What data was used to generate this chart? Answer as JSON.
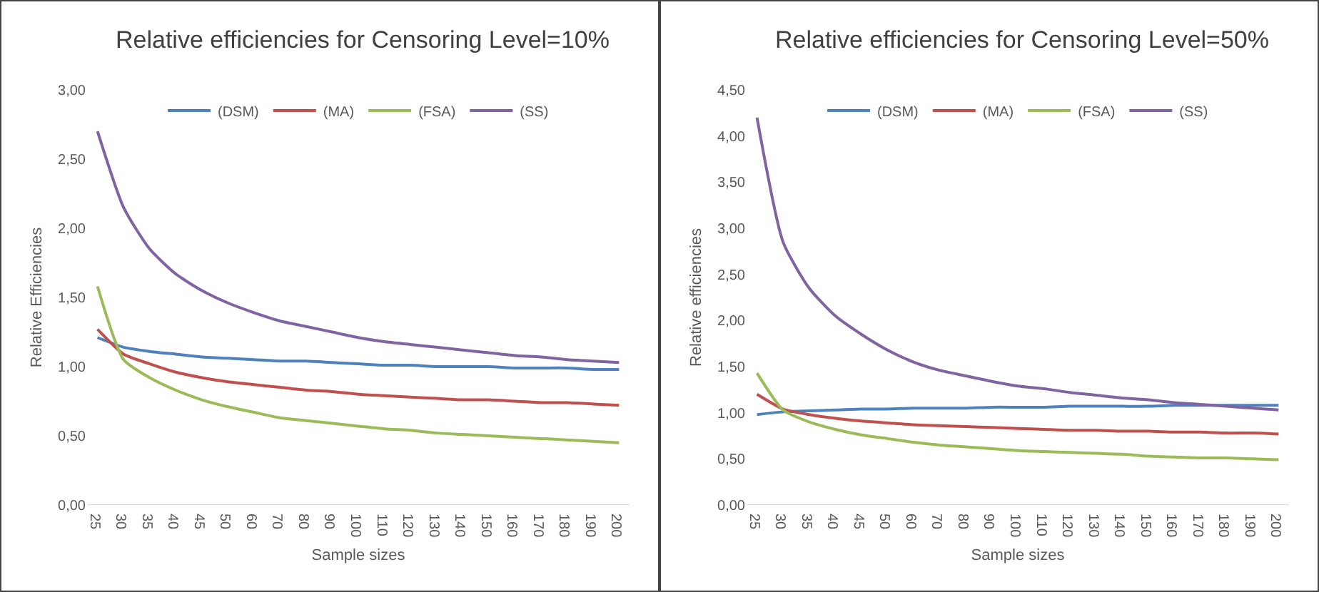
{
  "chart_data": [
    {
      "type": "line",
      "title": "Relative efficiencies for Censoring Level=10%",
      "xlabel": "Sample sizes",
      "ylabel": "Relative Efficiencies",
      "categories": [
        "25",
        "30",
        "35",
        "40",
        "45",
        "50",
        "60",
        "70",
        "80",
        "90",
        "100",
        "110",
        "120",
        "130",
        "140",
        "150",
        "160",
        "170",
        "180",
        "190",
        "200"
      ],
      "series": [
        {
          "name": "(DSM)",
          "color": "#4f81bd",
          "values": [
            1.21,
            1.14,
            1.11,
            1.09,
            1.07,
            1.06,
            1.05,
            1.04,
            1.04,
            1.03,
            1.02,
            1.01,
            1.01,
            1.0,
            1.0,
            1.0,
            0.99,
            0.99,
            0.99,
            0.98,
            0.98
          ]
        },
        {
          "name": "(MA)",
          "color": "#c0504d",
          "values": [
            1.27,
            1.09,
            1.02,
            0.96,
            0.92,
            0.89,
            0.87,
            0.85,
            0.83,
            0.82,
            0.8,
            0.79,
            0.78,
            0.77,
            0.76,
            0.76,
            0.75,
            0.74,
            0.74,
            0.73,
            0.72
          ]
        },
        {
          "name": "(FSA)",
          "color": "#9bbb59",
          "values": [
            1.58,
            1.05,
            0.92,
            0.83,
            0.76,
            0.71,
            0.67,
            0.63,
            0.61,
            0.59,
            0.57,
            0.55,
            0.54,
            0.52,
            0.51,
            0.5,
            0.49,
            0.48,
            0.47,
            0.46,
            0.45
          ]
        },
        {
          "name": "(SS)",
          "color": "#8064a2",
          "values": [
            2.7,
            2.15,
            1.85,
            1.67,
            1.55,
            1.46,
            1.39,
            1.33,
            1.29,
            1.25,
            1.21,
            1.18,
            1.16,
            1.14,
            1.12,
            1.1,
            1.08,
            1.07,
            1.05,
            1.04,
            1.03
          ]
        }
      ],
      "ylim": [
        0,
        3
      ],
      "yticks": [
        {
          "value": 0,
          "label": "0,00"
        },
        {
          "value": 0.5,
          "label": "0,50"
        },
        {
          "value": 1,
          "label": "1,00"
        },
        {
          "value": 1.5,
          "label": "1,50"
        },
        {
          "value": 2,
          "label": "2,00"
        },
        {
          "value": 2.5,
          "label": "2,50"
        },
        {
          "value": 3,
          "label": "3,00"
        }
      ],
      "grid": false,
      "legend": "top",
      "marker": "none",
      "line_style": "solid"
    },
    {
      "type": "line",
      "title": "Relative efficiencies for Censoring Level=50%",
      "xlabel": "Sample sizes",
      "ylabel": "Relative efficiencies",
      "categories": [
        "25",
        "30",
        "35",
        "40",
        "45",
        "50",
        "60",
        "70",
        "80",
        "90",
        "100",
        "110",
        "120",
        "130",
        "140",
        "150",
        "160",
        "170",
        "180",
        "190",
        "200"
      ],
      "series": [
        {
          "name": "(DSM)",
          "color": "#4f81bd",
          "values": [
            0.98,
            1.01,
            1.02,
            1.03,
            1.04,
            1.04,
            1.05,
            1.05,
            1.05,
            1.06,
            1.06,
            1.06,
            1.07,
            1.07,
            1.07,
            1.07,
            1.08,
            1.08,
            1.08,
            1.08,
            1.08
          ]
        },
        {
          "name": "(MA)",
          "color": "#c0504d",
          "values": [
            1.2,
            1.04,
            0.98,
            0.94,
            0.91,
            0.89,
            0.87,
            0.86,
            0.85,
            0.84,
            0.83,
            0.82,
            0.81,
            0.81,
            0.8,
            0.8,
            0.79,
            0.79,
            0.78,
            0.78,
            0.77
          ]
        },
        {
          "name": "(FSA)",
          "color": "#9bbb59",
          "values": [
            1.43,
            1.03,
            0.9,
            0.82,
            0.76,
            0.72,
            0.68,
            0.65,
            0.63,
            0.61,
            0.59,
            0.58,
            0.57,
            0.56,
            0.55,
            0.53,
            0.52,
            0.51,
            0.51,
            0.5,
            0.49
          ]
        },
        {
          "name": "(SS)",
          "color": "#8064a2",
          "values": [
            4.2,
            2.85,
            2.35,
            2.05,
            1.85,
            1.68,
            1.55,
            1.46,
            1.4,
            1.34,
            1.29,
            1.26,
            1.22,
            1.19,
            1.16,
            1.14,
            1.11,
            1.09,
            1.07,
            1.05,
            1.03
          ]
        }
      ],
      "ylim": [
        0,
        4.5
      ],
      "yticks": [
        {
          "value": 0,
          "label": "0,00"
        },
        {
          "value": 0.5,
          "label": "0,50"
        },
        {
          "value": 1,
          "label": "1,00"
        },
        {
          "value": 1.5,
          "label": "1,50"
        },
        {
          "value": 2,
          "label": "2,00"
        },
        {
          "value": 2.5,
          "label": "2,50"
        },
        {
          "value": 3,
          "label": "3,00"
        },
        {
          "value": 3.5,
          "label": "3,50"
        },
        {
          "value": 4,
          "label": "4,00"
        },
        {
          "value": 4.5,
          "label": "4,50"
        }
      ],
      "grid": false,
      "legend": "top",
      "marker": "none",
      "line_style": "solid"
    }
  ]
}
